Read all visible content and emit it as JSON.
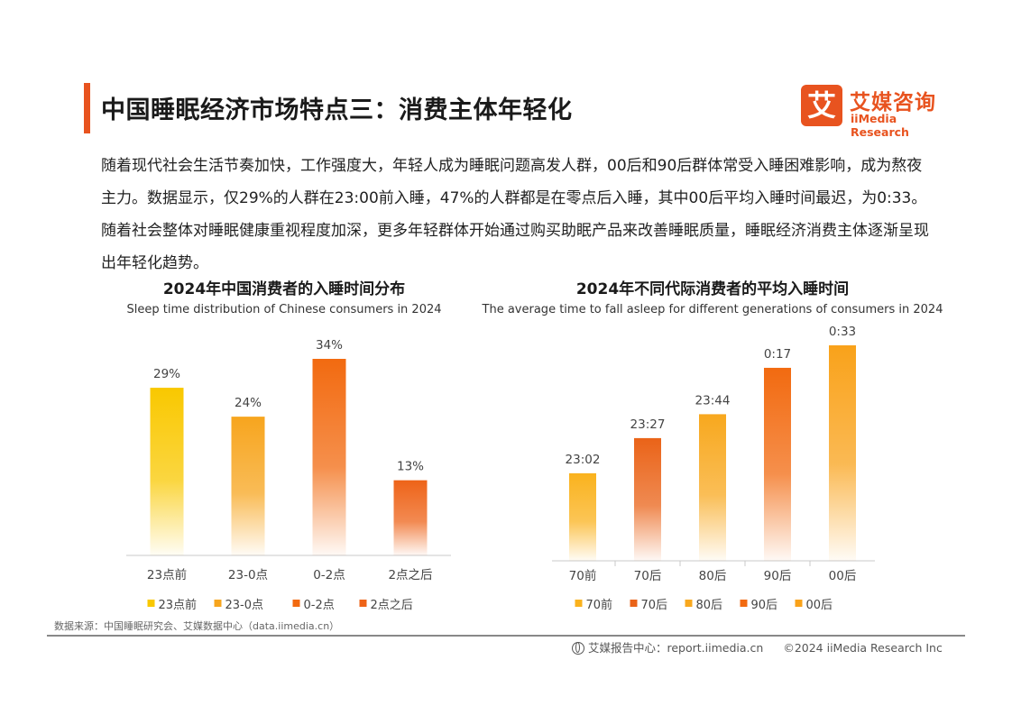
{
  "page": {
    "title": "中国睡眠经济市场特点三：消费主体年轻化",
    "intro": "随着现代社会生活节奏加快，工作强度大，年轻人成为睡眠问题高发人群，00后和90后群体常受入睡困难影响，成为熬夜主力。数据显示，仅29%的人群在23:00前入睡，47%的人群都是在零点后入睡，其中00后平均入睡时间最迟，为0:33。随着社会整体对睡眠健康重视程度加深，更多年轻群体开始通过购买助眠产品来改善睡眠质量，睡眠经济消费主体逐渐呈现出年轻化趋势。"
  },
  "logo": {
    "mark": "艾",
    "name_cn": "艾媒咨询",
    "name_en": "iiMedia Research"
  },
  "footer": {
    "source": "数据来源：中国睡眠研究会、艾媒数据中心（data.iimedia.cn）",
    "report": "艾媒报告中心：report.iimedia.cn",
    "copyright": "©2024  iiMedia Research Inc"
  },
  "chart_data": [
    {
      "type": "bar",
      "title": "2024年中国消费者的入睡时间分布",
      "subtitle": "Sleep time distribution of Chinese consumers in 2024",
      "categories": [
        "23点前",
        "23-0点",
        "0-2点",
        "2点之后"
      ],
      "values": [
        29,
        24,
        34,
        13
      ],
      "data_labels": [
        "29%",
        "24%",
        "34%",
        "13%"
      ],
      "unit": "%",
      "ylim": [
        0,
        40
      ],
      "legend": [
        "23点前",
        "23-0点",
        "0-2点",
        "2点之后"
      ],
      "legend_position": "bottom",
      "grid": false,
      "colors": [
        "#f9c800",
        "#f7a51e",
        "#f26a10",
        "#ee6318"
      ]
    },
    {
      "type": "bar",
      "title": "2024年不同代际消费者的平均入睡时间",
      "subtitle": "The average time to fall asleep for different generations of consumers in 2024",
      "categories": [
        "70前",
        "70后",
        "80后",
        "90后",
        "00后"
      ],
      "values": [
        "23:02",
        "23:27",
        "23:44",
        "0:17",
        "0:33"
      ],
      "data_labels": [
        "23:02",
        "23:27",
        "23:44",
        "0:17",
        "0:33"
      ],
      "legend": [
        "70前",
        "70后",
        "80后",
        "90后",
        "00后"
      ],
      "legend_position": "bottom",
      "grid": false,
      "colors": [
        "#fab21d",
        "#ea6318",
        "#f8a81e",
        "#f26a10",
        "#f9a21a"
      ]
    }
  ]
}
